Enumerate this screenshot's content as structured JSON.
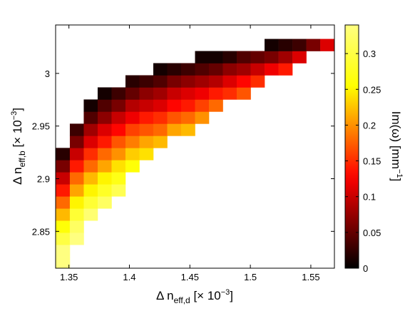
{
  "chart_data": {
    "type": "heatmap",
    "xlabel": [
      "Δ n",
      "eff,d",
      " [× 10",
      "−3",
      "]"
    ],
    "ylabel": [
      "Δ n",
      "eff,b",
      " [× 10",
      "−3",
      "]"
    ],
    "colorbar_label": [
      "Im(ω) [mm",
      "−1",
      "]"
    ],
    "colormap": "hot",
    "xlim": [
      1.339,
      1.5695
    ],
    "ylim": [
      2.815,
      3.046
    ],
    "xticks": [
      1.35,
      1.4,
      1.45,
      1.5,
      1.55
    ],
    "yticks": [
      2.85,
      2.9,
      2.95,
      3
    ],
    "clim": [
      0,
      0.34
    ],
    "cticks": [
      0,
      0.05,
      0.1,
      0.15,
      0.2,
      0.25,
      0.3
    ],
    "x": [
      1.345,
      1.3565,
      1.368,
      1.3795,
      1.391,
      1.4025,
      1.414,
      1.4255,
      1.437,
      1.4485,
      1.46,
      1.4715,
      1.483,
      1.4945,
      1.506,
      1.5175,
      1.529,
      1.5405,
      1.552,
      1.5635
    ],
    "y": [
      2.82,
      2.8315,
      2.843,
      2.8545,
      2.866,
      2.8775,
      2.889,
      2.9005,
      2.912,
      2.9235,
      2.935,
      2.9465,
      2.958,
      2.9695,
      2.981,
      2.9925,
      3.004,
      3.0155,
      3.027,
      3.0385
    ],
    "z": [
      [
        0.38,
        null,
        null,
        null,
        null,
        null,
        null,
        null,
        null,
        null,
        null,
        null,
        null,
        null,
        null,
        null,
        null,
        null,
        null,
        null
      ],
      [
        0.34,
        null,
        null,
        null,
        null,
        null,
        null,
        null,
        null,
        null,
        null,
        null,
        null,
        null,
        null,
        null,
        null,
        null,
        null,
        null
      ],
      [
        0.3,
        0.36,
        null,
        null,
        null,
        null,
        null,
        null,
        null,
        null,
        null,
        null,
        null,
        null,
        null,
        null,
        null,
        null,
        null,
        null
      ],
      [
        0.26,
        0.32,
        null,
        null,
        null,
        null,
        null,
        null,
        null,
        null,
        null,
        null,
        null,
        null,
        null,
        null,
        null,
        null,
        null,
        null
      ],
      [
        0.22,
        0.29,
        0.33,
        null,
        null,
        null,
        null,
        null,
        null,
        null,
        null,
        null,
        null,
        null,
        null,
        null,
        null,
        null,
        null,
        null
      ],
      [
        0.18,
        0.25,
        0.29,
        0.32,
        null,
        null,
        null,
        null,
        null,
        null,
        null,
        null,
        null,
        null,
        null,
        null,
        null,
        null,
        null,
        null
      ],
      [
        0.14,
        0.21,
        0.25,
        0.28,
        0.31,
        null,
        null,
        null,
        null,
        null,
        null,
        null,
        null,
        null,
        null,
        null,
        null,
        null,
        null,
        null
      ],
      [
        0.1,
        0.18,
        0.22,
        0.25,
        0.27,
        null,
        null,
        null,
        null,
        null,
        null,
        null,
        null,
        null,
        null,
        null,
        null,
        null,
        null,
        null
      ],
      [
        0.06,
        0.14,
        0.18,
        0.21,
        0.24,
        0.26,
        null,
        null,
        null,
        null,
        null,
        null,
        null,
        null,
        null,
        null,
        null,
        null,
        null,
        null
      ],
      [
        0.02,
        0.1,
        0.15,
        0.18,
        0.2,
        0.23,
        0.24,
        null,
        null,
        null,
        null,
        null,
        null,
        null,
        null,
        null,
        null,
        null,
        null,
        null
      ],
      [
        null,
        0.06,
        0.11,
        0.14,
        0.17,
        0.19,
        0.21,
        0.22,
        null,
        null,
        null,
        null,
        null,
        null,
        null,
        null,
        null,
        null,
        null,
        null
      ],
      [
        null,
        0.03,
        0.08,
        0.11,
        0.13,
        0.16,
        0.17,
        0.18,
        0.21,
        0.22,
        null,
        null,
        null,
        null,
        null,
        null,
        null,
        null,
        null,
        null
      ],
      [
        null,
        null,
        0.04,
        0.07,
        0.1,
        0.12,
        0.14,
        0.15,
        0.17,
        0.18,
        0.2,
        null,
        null,
        null,
        null,
        null,
        null,
        null,
        null,
        null
      ],
      [
        null,
        null,
        0.01,
        0.04,
        0.06,
        0.09,
        0.1,
        0.11,
        0.13,
        0.14,
        0.16,
        0.18,
        null,
        null,
        null,
        null,
        null,
        null,
        null,
        null
      ],
      [
        null,
        null,
        null,
        0.01,
        0.03,
        0.05,
        0.07,
        0.08,
        0.1,
        0.11,
        0.12,
        0.14,
        0.15,
        0.17,
        null,
        null,
        null,
        null,
        null,
        null
      ],
      [
        null,
        null,
        null,
        null,
        null,
        0.02,
        0.03,
        0.04,
        0.06,
        0.07,
        0.08,
        0.09,
        0.11,
        0.13,
        0.15,
        null,
        null,
        null,
        null,
        null
      ],
      [
        null,
        null,
        null,
        null,
        null,
        null,
        null,
        0.01,
        0.02,
        0.03,
        0.04,
        0.05,
        0.07,
        0.08,
        0.1,
        0.12,
        0.14,
        null,
        null,
        null
      ],
      [
        null,
        null,
        null,
        null,
        null,
        null,
        null,
        null,
        null,
        null,
        0.01,
        0.01,
        0.02,
        0.04,
        0.05,
        0.06,
        0.08,
        0.11,
        null,
        null
      ],
      [
        null,
        null,
        null,
        null,
        null,
        null,
        null,
        null,
        null,
        null,
        null,
        null,
        null,
        null,
        null,
        0.01,
        0.02,
        0.03,
        0.06,
        0.11
      ],
      [
        null,
        null,
        null,
        null,
        null,
        null,
        null,
        null,
        null,
        null,
        null,
        null,
        null,
        null,
        null,
        null,
        null,
        null,
        null,
        null
      ]
    ]
  }
}
